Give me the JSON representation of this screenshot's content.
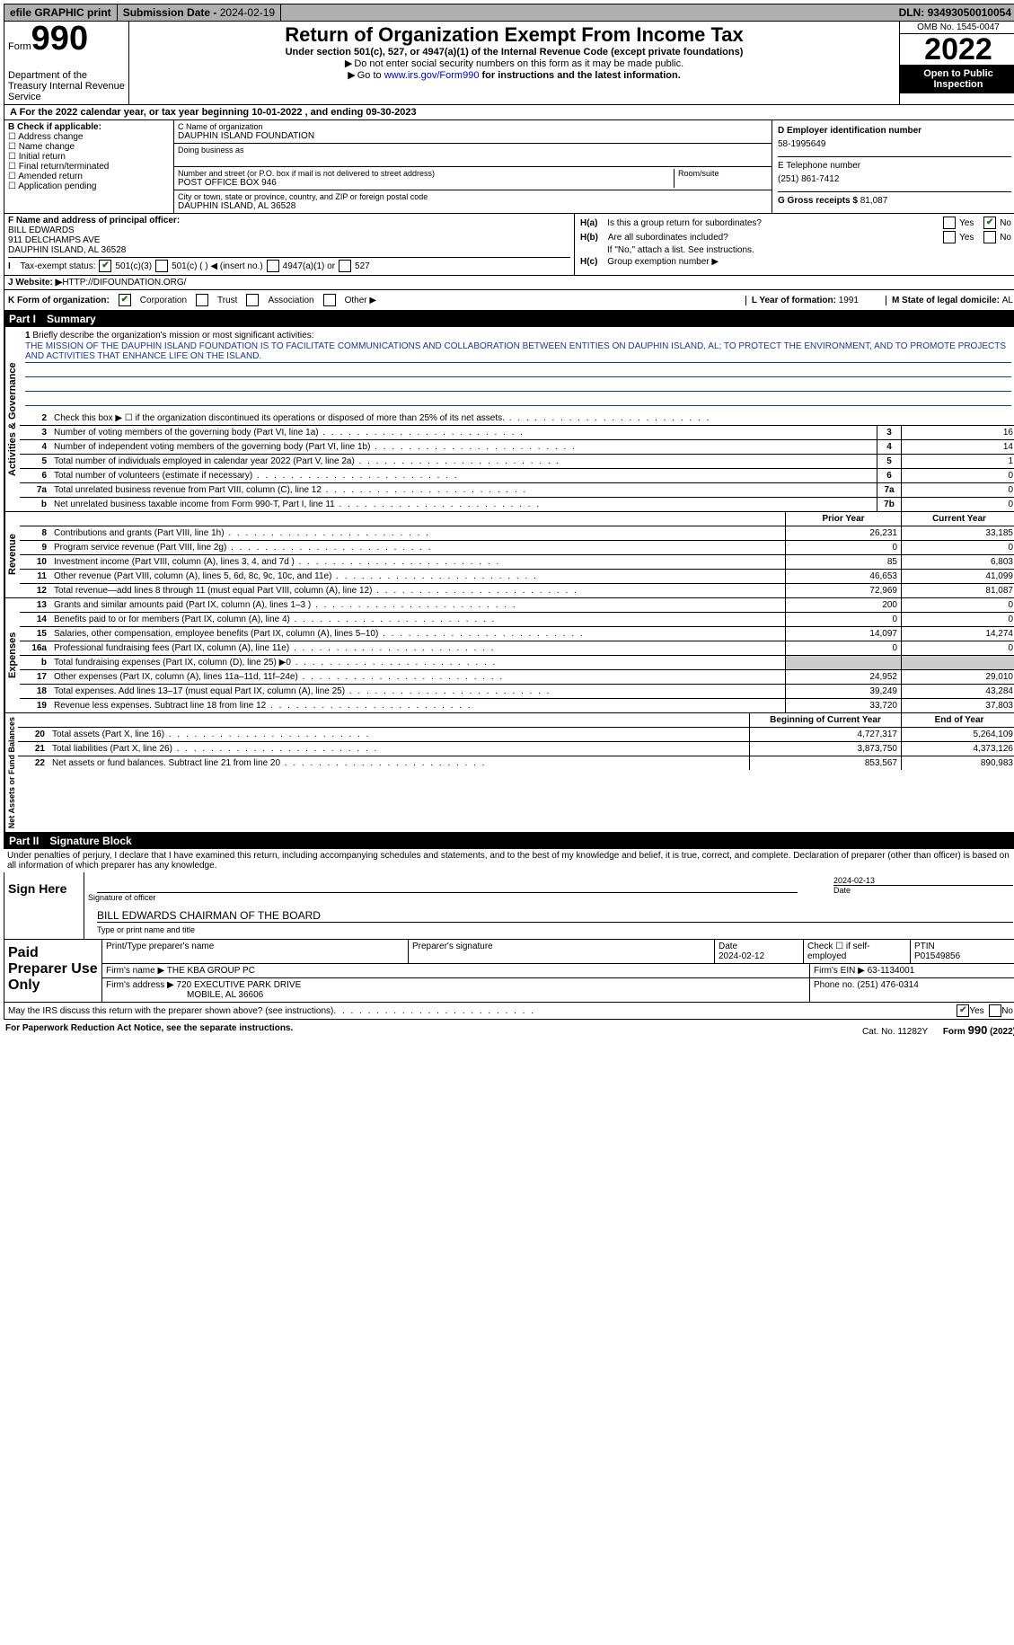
{
  "topbar": {
    "efile": "efile GRAPHIC print",
    "sub_label": "Submission Date - ",
    "sub_date": "2024-02-19",
    "dln_label": "DLN: ",
    "dln": "93493050010054"
  },
  "header": {
    "form_word": "Form",
    "form_num": "990",
    "dept": "Department of the Treasury\nInternal Revenue Service",
    "title": "Return of Organization Exempt From Income Tax",
    "subtitle": "Under section 501(c), 527, or 4947(a)(1) of the Internal Revenue Code (except private foundations)",
    "note1": "Do not enter social security numbers on this form as it may be made public.",
    "note2_pre": "Go to ",
    "note2_link": "www.irs.gov/Form990",
    "note2_post": " for instructions and the latest information.",
    "omb": "OMB No. 1545-0047",
    "year": "2022",
    "open": "Open to Public Inspection"
  },
  "calyr": "A For the 2022 calendar year, or tax year beginning 10-01-2022   , and ending 09-30-2023",
  "boxB": {
    "label": "B Check if applicable:",
    "opts": [
      "Address change",
      "Name change",
      "Initial return",
      "Final return/terminated",
      "Amended return",
      "Application pending"
    ]
  },
  "boxC": {
    "name_lab": "C Name of organization",
    "name": "DAUPHIN ISLAND FOUNDATION",
    "dba_lab": "Doing business as",
    "addr_lab": "Number and street (or P.O. box if mail is not delivered to street address)",
    "room_lab": "Room/suite",
    "addr": "POST OFFICE BOX 946",
    "city_lab": "City or town, state or province, country, and ZIP or foreign postal code",
    "city": "DAUPHIN ISLAND, AL  36528"
  },
  "boxD": {
    "ein_lab": "D Employer identification number",
    "ein": "58-1995649",
    "tel_lab": "E Telephone number",
    "tel": "(251) 861-7412",
    "gross_lab": "G Gross receipts $ ",
    "gross": "81,087"
  },
  "boxF": {
    "label": "F  Name and address of principal officer:",
    "name": "BILL EDWARDS",
    "addr1": "911 DELCHAMPS AVE",
    "addr2": "DAUPHIN ISLAND, AL  36528"
  },
  "boxH": {
    "a": "Is this a group return for subordinates?",
    "b": "Are all subordinates included?",
    "b_note": "If \"No,\" attach a list. See instructions.",
    "c": "Group exemption number ▶",
    "yes": "Yes",
    "no": "No",
    "ha": "H(a)",
    "hb": "H(b)",
    "hc": "H(c)"
  },
  "boxI": {
    "label": "Tax-exempt status:",
    "o1": "501(c)(3)",
    "o2": "501(c) (  ) ◀ (insert no.)",
    "o3": "4947(a)(1) or",
    "o4": "527"
  },
  "boxJ": {
    "label": "J  Website: ▶ ",
    "url": "HTTP://DIFOUNDATION.ORG/"
  },
  "boxK": {
    "label": "K Form of organization:",
    "o1": "Corporation",
    "o2": "Trust",
    "o3": "Association",
    "o4": "Other ▶",
    "l_lab": "L Year of formation: ",
    "l_val": "1991",
    "m_lab": "M State of legal domicile: ",
    "m_val": "AL"
  },
  "part1": {
    "num": "Part I",
    "title": "Summary"
  },
  "mission": {
    "q": "Briefly describe the organization's mission or most significant activities:",
    "text": "THE MISSION OF THE DAUPHIN ISLAND FOUNDATION IS TO FACILITATE COMMUNICATIONS AND COLLABORATION BETWEEN ENTITIES ON DAUPHIN ISLAND, AL; TO PROTECT THE ENVIRONMENT, AND TO PROMOTE PROJECTS AND ACTIVITIES THAT ENHANCE LIFE ON THE ISLAND."
  },
  "lines_gov": [
    {
      "n": "2",
      "l": "Check this box ▶ ☐  if the organization discontinued its operations or disposed of more than 25% of its net assets."
    },
    {
      "n": "3",
      "l": "Number of voting members of the governing body (Part VI, line 1a)",
      "box": "3",
      "v": "16"
    },
    {
      "n": "4",
      "l": "Number of independent voting members of the governing body (Part VI, line 1b)",
      "box": "4",
      "v": "14"
    },
    {
      "n": "5",
      "l": "Total number of individuals employed in calendar year 2022 (Part V, line 2a)",
      "box": "5",
      "v": "1"
    },
    {
      "n": "6",
      "l": "Total number of volunteers (estimate if necessary)",
      "box": "6",
      "v": "0"
    },
    {
      "n": "7a",
      "l": "Total unrelated business revenue from Part VIII, column (C), line 12",
      "box": "7a",
      "v": "0"
    },
    {
      "n": "b",
      "l": "Net unrelated business taxable income from Form 990-T, Part I, line 11",
      "box": "7b",
      "v": "0"
    }
  ],
  "col_hdr": {
    "prior": "Prior Year",
    "curr": "Current Year"
  },
  "lines_rev": [
    {
      "n": "8",
      "l": "Contributions and grants (Part VIII, line 1h)",
      "p": "26,231",
      "c": "33,185"
    },
    {
      "n": "9",
      "l": "Program service revenue (Part VIII, line 2g)",
      "p": "0",
      "c": "0"
    },
    {
      "n": "10",
      "l": "Investment income (Part VIII, column (A), lines 3, 4, and 7d )",
      "p": "85",
      "c": "6,803"
    },
    {
      "n": "11",
      "l": "Other revenue (Part VIII, column (A), lines 5, 6d, 8c, 9c, 10c, and 11e)",
      "p": "46,653",
      "c": "41,099"
    },
    {
      "n": "12",
      "l": "Total revenue—add lines 8 through 11 (must equal Part VIII, column (A), line 12)",
      "p": "72,969",
      "c": "81,087"
    }
  ],
  "lines_exp": [
    {
      "n": "13",
      "l": "Grants and similar amounts paid (Part IX, column (A), lines 1–3 )",
      "p": "200",
      "c": "0"
    },
    {
      "n": "14",
      "l": "Benefits paid to or for members (Part IX, column (A), line 4)",
      "p": "0",
      "c": "0"
    },
    {
      "n": "15",
      "l": "Salaries, other compensation, employee benefits (Part IX, column (A), lines 5–10)",
      "p": "14,097",
      "c": "14,274"
    },
    {
      "n": "16a",
      "l": "Professional fundraising fees (Part IX, column (A), line 11e)",
      "p": "0",
      "c": "0"
    },
    {
      "n": "b",
      "l": "Total fundraising expenses (Part IX, column (D), line 25) ▶0",
      "shade": true
    },
    {
      "n": "17",
      "l": "Other expenses (Part IX, column (A), lines 11a–11d, 11f–24e)",
      "p": "24,952",
      "c": "29,010"
    },
    {
      "n": "18",
      "l": "Total expenses. Add lines 13–17 (must equal Part IX, column (A), line 25)",
      "p": "39,249",
      "c": "43,284"
    },
    {
      "n": "19",
      "l": "Revenue less expenses. Subtract line 18 from line 12",
      "p": "33,720",
      "c": "37,803"
    }
  ],
  "col_hdr2": {
    "prior": "Beginning of Current Year",
    "curr": "End of Year"
  },
  "lines_net": [
    {
      "n": "20",
      "l": "Total assets (Part X, line 16)",
      "p": "4,727,317",
      "c": "5,264,109"
    },
    {
      "n": "21",
      "l": "Total liabilities (Part X, line 26)",
      "p": "3,873,750",
      "c": "4,373,126"
    },
    {
      "n": "22",
      "l": "Net assets or fund balances. Subtract line 21 from line 20",
      "p": "853,567",
      "c": "890,983"
    }
  ],
  "side": {
    "gov": "Activities & Governance",
    "rev": "Revenue",
    "exp": "Expenses",
    "net": "Net Assets or Fund Balances"
  },
  "part2": {
    "num": "Part II",
    "title": "Signature Block"
  },
  "penalty": "Under penalties of perjury, I declare that I have examined this return, including accompanying schedules and statements, and to the best of my knowledge and belief, it is true, correct, and complete. Declaration of preparer (other than officer) is based on all information of which preparer has any knowledge.",
  "sign": {
    "here": "Sign Here",
    "sig_of": "Signature of officer",
    "date_lab": "Date",
    "date": "2024-02-13",
    "name": "BILL EDWARDS  CHAIRMAN OF THE BOARD",
    "type": "Type or print name and title"
  },
  "paid": {
    "label": "Paid Preparer Use Only",
    "pname_lab": "Print/Type preparer's name",
    "psig_lab": "Preparer's signature",
    "pdate_lab": "Date",
    "pdate": "2024-02-12",
    "self": "Check ☐ if self-employed",
    "ptin_lab": "PTIN",
    "ptin": "P01549856",
    "firm_lab": "Firm's name    ▶ ",
    "firm": "THE KBA GROUP PC",
    "ein_lab": "Firm's EIN ▶ ",
    "ein": "63-1134001",
    "addr_lab": "Firm's address ▶ ",
    "addr1": "720 EXECUTIVE PARK DRIVE",
    "addr2": "MOBILE, AL  36606",
    "phone_lab": "Phone no. ",
    "phone": "(251) 476-0314"
  },
  "irs_q": {
    "q": "May the IRS discuss this return with the preparer shown above? (see instructions)",
    "yes": "Yes",
    "no": "No"
  },
  "footer": {
    "l": "For Paperwork Reduction Act Notice, see the separate instructions.",
    "m": "Cat. No. 11282Y",
    "r": "Form 990 (2022)"
  }
}
